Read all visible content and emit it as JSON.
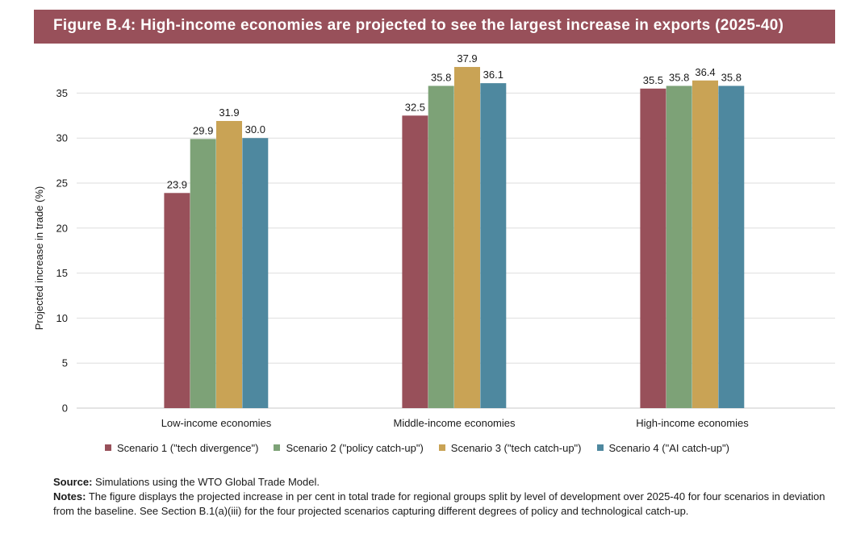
{
  "header": {
    "title": "Figure B.4: High-income economies are projected to see the largest increase in exports (2025-40)"
  },
  "chart_data": {
    "type": "bar",
    "title": "Figure B.4: High-income economies are projected to see the largest increase in exports (2025-40)",
    "xlabel": "",
    "ylabel": "Projected increase in trade (%)",
    "ylim": [
      0,
      38
    ],
    "yticks": [
      0,
      5,
      10,
      15,
      20,
      25,
      30,
      35
    ],
    "grid": "horizontal",
    "legend_position": "bottom",
    "categories": [
      "Low-income economies",
      "Middle-income economies",
      "High-income economies"
    ],
    "series": [
      {
        "name": "Scenario 1 (\"tech divergence\")",
        "color": "#98505a",
        "values": [
          23.9,
          32.5,
          35.5
        ],
        "labels": [
          "23.9",
          "32.5",
          "35.5"
        ]
      },
      {
        "name": "Scenario 2 (\"policy catch-up\")",
        "color": "#7da277",
        "values": [
          29.9,
          35.8,
          35.8
        ],
        "labels": [
          "29.9",
          "35.8",
          "35.8"
        ]
      },
      {
        "name": "Scenario 3 (\"tech catch-up\")",
        "color": "#c9a355",
        "values": [
          31.9,
          37.9,
          36.4
        ],
        "labels": [
          "31.9",
          "37.9",
          "36.4"
        ]
      },
      {
        "name": "Scenario 4 (\"AI catch-up\")",
        "color": "#4e889f",
        "values": [
          30.0,
          36.1,
          35.8
        ],
        "labels": [
          "30.0",
          "36.1",
          "35.8"
        ]
      }
    ]
  },
  "footer": {
    "source_label": "Source:",
    "source_text": " Simulations using the WTO Global Trade Model.",
    "notes_label": "Notes:",
    "notes_text": " The figure displays the projected increase in per cent in total trade for regional groups split by level of development over 2025-40 for four scenarios in deviation from the baseline. See Section B.1(a)(iii) for the four projected scenarios capturing different degrees of policy and technological catch-up."
  }
}
